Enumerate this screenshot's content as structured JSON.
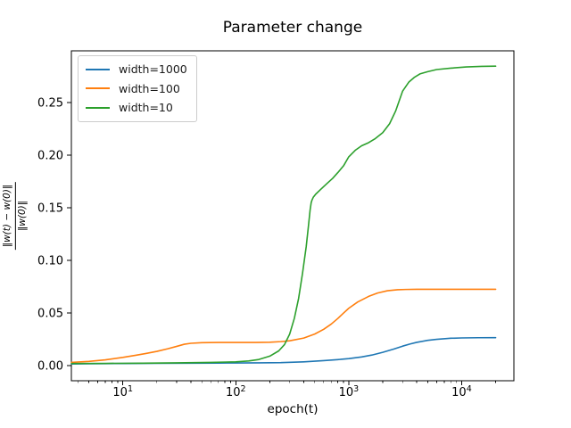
{
  "figure": {
    "title": "Parameter change",
    "xlabel": "epoch(t)",
    "ylabel_numerator": "‖w(t) − w(0)‖",
    "ylabel_denominator": "‖w(0)‖"
  },
  "legend": {
    "position": "upper left",
    "entries": [
      {
        "label": "width=1000",
        "color": "#1f77b4"
      },
      {
        "label": "width=100",
        "color": "#ff7f0e"
      },
      {
        "label": "width=10",
        "color": "#2ca02c"
      }
    ]
  },
  "chart_data": {
    "type": "line",
    "title": "Parameter change",
    "xlabel": "epoch(t)",
    "ylabel": "‖w(t) − w(0)‖ / ‖w(0)‖",
    "x_scale": "log",
    "y_scale": "linear",
    "grid": false,
    "legend_position": "upper left",
    "xlim": [
      3.5,
      29000
    ],
    "ylim": [
      -0.0144,
      0.2993
    ],
    "x_major_ticks": [
      10,
      100,
      1000,
      10000
    ],
    "x_tick_mantissa": "10",
    "x_tick_exponents": [
      "1",
      "2",
      "3",
      "4"
    ],
    "y_ticks": [
      0,
      0.05,
      0.1,
      0.15,
      0.2,
      0.25
    ],
    "y_tick_labels": [
      "0.00",
      "0.05",
      "0.10",
      "0.15",
      "0.20",
      "0.25"
    ],
    "series": [
      {
        "name": "width=1000",
        "color": "#1f77b4",
        "x": [
          3.5,
          5,
          7,
          10,
          20,
          40,
          70,
          100,
          160,
          250,
          400,
          600,
          800,
          1000,
          1300,
          1600,
          2000,
          2500,
          3000,
          3500,
          4000,
          5000,
          6000,
          8000,
          10000,
          14000,
          20000
        ],
        "y": [
          0.0015,
          0.0017,
          0.0019,
          0.002,
          0.0022,
          0.0023,
          0.0024,
          0.0025,
          0.0026,
          0.0028,
          0.0036,
          0.0047,
          0.0057,
          0.0066,
          0.0082,
          0.01,
          0.0126,
          0.0157,
          0.0185,
          0.0206,
          0.0221,
          0.024,
          0.025,
          0.026,
          0.0263,
          0.0265,
          0.0266
        ]
      },
      {
        "name": "width=100",
        "color": "#ff7f0e",
        "x": [
          3.5,
          5,
          7,
          10,
          13,
          16,
          20,
          25,
          30,
          35,
          40,
          50,
          70,
          100,
          150,
          200,
          250,
          300,
          400,
          500,
          600,
          700,
          800,
          900,
          1000,
          1200,
          1500,
          1800,
          2200,
          2700,
          3200,
          4000,
          5000,
          7000,
          10000,
          20000
        ],
        "y": [
          0.003,
          0.004,
          0.0055,
          0.0078,
          0.0098,
          0.0115,
          0.0135,
          0.016,
          0.0183,
          0.0203,
          0.0212,
          0.0218,
          0.022,
          0.022,
          0.022,
          0.0222,
          0.0228,
          0.0236,
          0.0262,
          0.03,
          0.0345,
          0.0395,
          0.0448,
          0.05,
          0.0545,
          0.0605,
          0.0658,
          0.069,
          0.0712,
          0.0721,
          0.0724,
          0.0726,
          0.0726,
          0.0726,
          0.0726,
          0.0726
        ]
      },
      {
        "name": "width=10",
        "color": "#2ca02c",
        "x": [
          3.5,
          7,
          15,
          30,
          60,
          100,
          130,
          160,
          200,
          240,
          270,
          300,
          330,
          360,
          390,
          420,
          440,
          455,
          465,
          472,
          485,
          510,
          560,
          640,
          720,
          800,
          900,
          1000,
          1150,
          1300,
          1500,
          1700,
          2000,
          2300,
          2600,
          3000,
          3400,
          3800,
          4300,
          5000,
          6000,
          8000,
          11000,
          15000,
          20000
        ],
        "y": [
          0.002,
          0.0021,
          0.0023,
          0.0026,
          0.003,
          0.0036,
          0.0044,
          0.0058,
          0.009,
          0.014,
          0.02,
          0.03,
          0.045,
          0.064,
          0.088,
          0.113,
          0.133,
          0.148,
          0.155,
          0.1572,
          0.16,
          0.163,
          0.1672,
          0.173,
          0.178,
          0.1835,
          0.19,
          0.1985,
          0.205,
          0.209,
          0.212,
          0.2155,
          0.2215,
          0.23,
          0.242,
          0.261,
          0.2695,
          0.274,
          0.2775,
          0.2795,
          0.2815,
          0.2828,
          0.284,
          0.2845,
          0.2847
        ]
      }
    ]
  }
}
